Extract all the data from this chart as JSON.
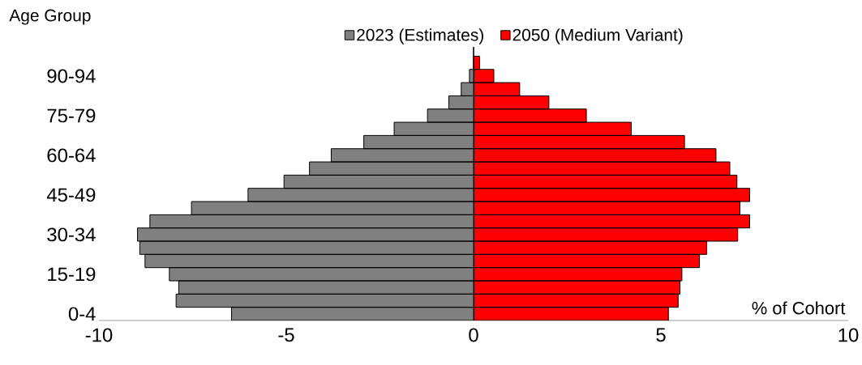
{
  "chart_data": {
    "type": "bar",
    "orientation": "horizontal",
    "categories": [
      null,
      "90-94",
      null,
      null,
      "75-79",
      null,
      null,
      "60-64",
      null,
      null,
      "45-49",
      null,
      null,
      "30-34",
      null,
      null,
      "15-19",
      null,
      null,
      "0-4"
    ],
    "series": [
      {
        "name": "2023 (Estimates)",
        "color": "#808080",
        "values": [
          null,
          -0.11,
          -0.33,
          -0.66,
          -1.23,
          -2.12,
          -2.93,
          -3.8,
          -4.38,
          -5.06,
          -6.02,
          -7.53,
          -8.64,
          -8.97,
          -8.91,
          -8.77,
          -8.12,
          -7.87,
          -7.94,
          -6.46
        ]
      },
      {
        "name": "2050 (Medium Variant)",
        "color": "#ff0000",
        "values": [
          0.16,
          0.54,
          1.23,
          2.01,
          3.01,
          4.21,
          5.63,
          6.47,
          6.84,
          7.03,
          7.37,
          7.11,
          7.37,
          7.05,
          6.22,
          6.03,
          5.56,
          5.51,
          5.46,
          5.2
        ]
      }
    ],
    "stacked": true,
    "xlim": [
      -10,
      10
    ],
    "xticks": [
      -10,
      -5,
      0,
      5,
      10
    ],
    "xlabel": "% of Cohort",
    "ylabel": "Age Group",
    "legend": "top"
  }
}
